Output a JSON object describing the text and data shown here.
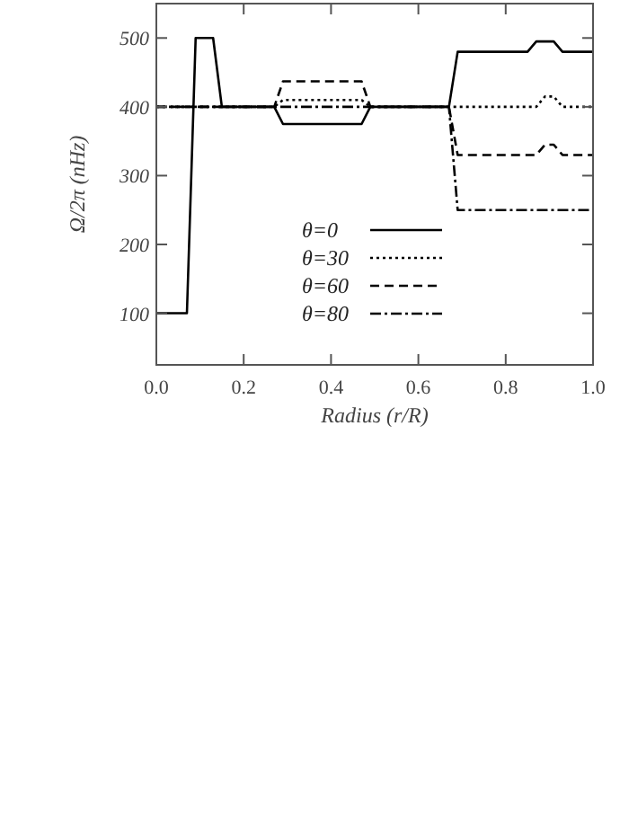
{
  "chart_data": {
    "type": "line",
    "xlabel": "Radius (r/R)",
    "ylabel": "Ω/2π (nHz)",
    "xlim": [
      0,
      1
    ],
    "ylim": [
      25,
      550
    ],
    "xticks": [
      {
        "value": 0,
        "label": "0.0"
      },
      {
        "value": 0.2,
        "label": "0.2"
      },
      {
        "value": 0.4,
        "label": "0.4"
      },
      {
        "value": 0.6,
        "label": "0.6"
      },
      {
        "value": 0.8,
        "label": "0.8"
      },
      {
        "value": 1,
        "label": "1.0"
      }
    ],
    "yticks": [
      100,
      200,
      300,
      400,
      500
    ],
    "legend": "center",
    "grid": false,
    "marker": "none",
    "series": [
      {
        "name": "θ=0",
        "color": "#000000",
        "line_style": "solid",
        "x": [
          0,
          0.07,
          0.09,
          0.13,
          0.15,
          0.27,
          0.29,
          0.47,
          0.49,
          0.67,
          0.69,
          0.85,
          0.87,
          0.91,
          0.93,
          1
        ],
        "values": [
          100,
          100,
          500,
          500,
          400,
          400,
          375,
          375,
          400,
          400,
          480,
          480,
          495,
          495,
          480,
          480
        ]
      },
      {
        "name": "θ=30",
        "color": "#000000",
        "line_style": "dotted",
        "x": [
          0,
          0.27,
          0.29,
          0.47,
          0.49,
          0.87,
          0.89,
          0.91,
          0.93,
          1
        ],
        "values": [
          400,
          400,
          410,
          410,
          400,
          400,
          415,
          415,
          400,
          400
        ]
      },
      {
        "name": "θ=60",
        "color": "#000000",
        "line_style": "dashed",
        "x": [
          0,
          0.27,
          0.29,
          0.47,
          0.49,
          0.67,
          0.69,
          0.87,
          0.89,
          0.91,
          0.93,
          1
        ],
        "values": [
          400,
          400,
          437,
          437,
          400,
          400,
          330,
          330,
          345,
          345,
          330,
          330
        ]
      },
      {
        "name": "θ=80",
        "color": "#000000",
        "line_style": "dashdot",
        "x": [
          0,
          0.67,
          0.69,
          1
        ],
        "values": [
          400,
          400,
          250,
          250
        ]
      }
    ]
  }
}
